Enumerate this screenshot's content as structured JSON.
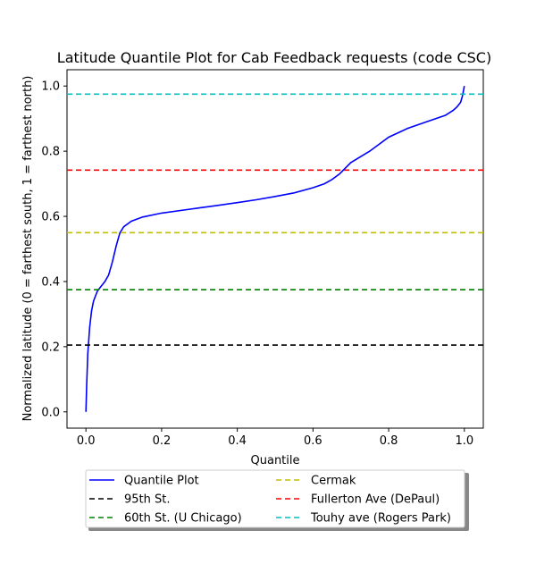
{
  "chart_data": {
    "type": "line",
    "title": "Latitude Quantile Plot for Cab Feedback  requests (code CSC)",
    "xlabel": "Quantile",
    "ylabel": "Normalized latitude (0 = farthest south, 1 = farthest north)",
    "xlim": [
      -0.05,
      1.05
    ],
    "ylim": [
      -0.05,
      1.05
    ],
    "xticks": [
      "0.0",
      "0.2",
      "0.4",
      "0.6",
      "0.8",
      "1.0"
    ],
    "yticks": [
      "0.0",
      "0.2",
      "0.4",
      "0.6",
      "0.8",
      "1.0"
    ],
    "grid": false,
    "legend_position": "below",
    "series": [
      {
        "name": "Quantile Plot",
        "color": "#0000ff",
        "style": "solid",
        "x": [
          0.0,
          0.002,
          0.005,
          0.01,
          0.015,
          0.02,
          0.03,
          0.04,
          0.05,
          0.06,
          0.07,
          0.08,
          0.09,
          0.1,
          0.12,
          0.15,
          0.2,
          0.25,
          0.3,
          0.35,
          0.4,
          0.45,
          0.5,
          0.55,
          0.6,
          0.63,
          0.65,
          0.67,
          0.7,
          0.75,
          0.8,
          0.85,
          0.9,
          0.95,
          0.97,
          0.98,
          0.99,
          0.995,
          1.0
        ],
        "y": [
          0.0,
          0.08,
          0.18,
          0.26,
          0.31,
          0.34,
          0.37,
          0.385,
          0.4,
          0.42,
          0.46,
          0.51,
          0.55,
          0.568,
          0.585,
          0.598,
          0.61,
          0.618,
          0.626,
          0.634,
          0.642,
          0.651,
          0.661,
          0.672,
          0.688,
          0.7,
          0.713,
          0.73,
          0.765,
          0.8,
          0.843,
          0.87,
          0.89,
          0.91,
          0.925,
          0.935,
          0.95,
          0.97,
          1.0
        ]
      },
      {
        "name": "95th St.",
        "color": "#000000",
        "style": "dashed",
        "y": 0.205
      },
      {
        "name": "60th St. (U Chicago)",
        "color": "#008000",
        "style": "dashed",
        "y": 0.375
      },
      {
        "name": "Cermak",
        "color": "#bfbf00",
        "style": "dashed",
        "y": 0.55
      },
      {
        "name": "Fullerton Ave (DePaul)",
        "color": "#ff0000",
        "style": "dashed",
        "y": 0.742
      },
      {
        "name": "Touhy ave (Rogers Park)",
        "color": "#00bfbf",
        "style": "dashed",
        "y": 0.975
      }
    ]
  }
}
